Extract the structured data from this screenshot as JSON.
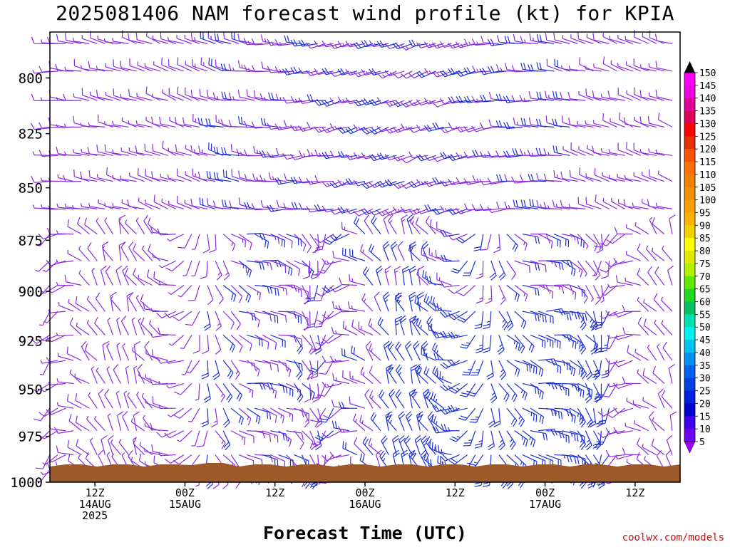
{
  "title": "2025081406 NAM forecast wind profile (kt) for KPIA",
  "xlabel": "Forecast Time (UTC)",
  "credit": "coolwx.com/models",
  "chart_data": {
    "type": "wind_barb_profile",
    "title": "2025081406 NAM forecast wind profile (kt) for KPIA",
    "xlabel": "Forecast Time (UTC)",
    "ylabel": "",
    "y_axis_units": "hPa",
    "ylim": [
      1000,
      780
    ],
    "y_ticks": [
      800,
      825,
      850,
      875,
      900,
      925,
      950,
      975,
      1000
    ],
    "x_range_hours": [
      0,
      84
    ],
    "x_ticks": [
      {
        "hour": 6,
        "labels": [
          "12Z",
          "14AUG",
          "2025"
        ]
      },
      {
        "hour": 18,
        "labels": [
          "00Z",
          "15AUG"
        ]
      },
      {
        "hour": 30,
        "labels": [
          "12Z"
        ]
      },
      {
        "hour": 42,
        "labels": [
          "00Z",
          "16AUG"
        ]
      },
      {
        "hour": 54,
        "labels": [
          "12Z"
        ]
      },
      {
        "hour": 66,
        "labels": [
          "00Z",
          "17AUG"
        ]
      },
      {
        "hour": 78,
        "labels": [
          "12Z"
        ]
      }
    ],
    "colorbar": {
      "units": "kt",
      "labels": [
        150,
        145,
        140,
        135,
        130,
        125,
        120,
        115,
        110,
        105,
        100,
        95,
        90,
        85,
        80,
        75,
        70,
        65,
        60,
        55,
        50,
        45,
        40,
        35,
        30,
        25,
        20,
        15,
        10,
        5
      ],
      "colors": [
        "#ff00ff",
        "#f000e0",
        "#e0009a",
        "#e0005a",
        "#ff0000",
        "#e83000",
        "#ff5000",
        "#ff7000",
        "#f08000",
        "#f09000",
        "#ffa000",
        "#ffb000",
        "#f0d000",
        "#ffff00",
        "#e0e800",
        "#b0f000",
        "#60e800",
        "#20d820",
        "#00c060",
        "#00e0b0",
        "#00f0f0",
        "#00c0f0",
        "#0090f0",
        "#0060f0",
        "#0040e0",
        "#0020e0",
        "#0000d0",
        "#4000f0",
        "#7000f0",
        "#a000ff"
      ]
    },
    "surface_fill": "#9c5a2b",
    "barb_colors": {
      "light": "#8a2be2",
      "strong": "#1f30d8"
    },
    "time_step_hours": 1,
    "pressure_levels": [
      785,
      797,
      810,
      822,
      835,
      847,
      860,
      872,
      885,
      897,
      910,
      922,
      935,
      947,
      960,
      972,
      985,
      993
    ]
  }
}
